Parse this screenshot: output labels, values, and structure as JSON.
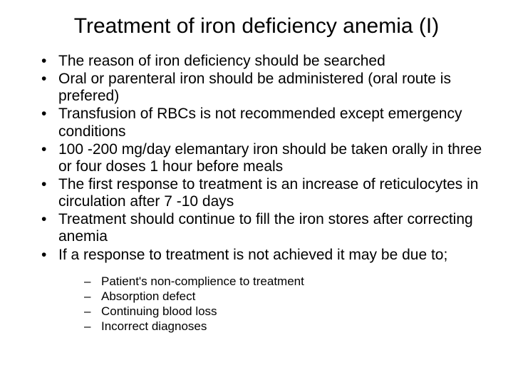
{
  "title": "Treatment of iron deficiency anemia (I)",
  "bullets": [
    "The reason of iron deficiency should be searched",
    "Oral or parenteral iron should be administered (oral route is prefered)",
    "Transfusion of RBCs is not recommended except emergency conditions",
    "100 -200 mg/day elemantary iron should be taken orally in three or four doses 1 hour before meals",
    "The first response to treatment is an increase of reticulocytes in circulation after 7 -10 days",
    "Treatment should continue to fill the iron stores after correcting anemia",
    "If a response to treatment is not achieved it may be due to;"
  ],
  "subbullets": [
    "Patient's non-complience to treatment",
    "Absorption defect",
    "Continuing blood loss",
    "Incorrect diagnoses"
  ],
  "colors": {
    "background": "#ffffff",
    "text": "#000000"
  },
  "typography": {
    "title_fontsize": 30,
    "bullet_fontsize": 21,
    "subbullet_fontsize": 17,
    "font_family": "Arial"
  }
}
